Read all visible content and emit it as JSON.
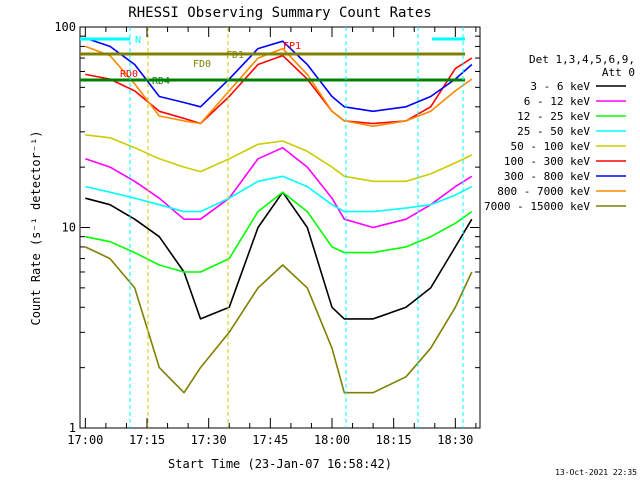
{
  "chart_data": {
    "type": "line",
    "title": "RHESSI Observing Summary Count Rates",
    "xlabel": "Start Time (23-Jan-07 16:58:42)",
    "ylabel": "Count Rate (s⁻¹ detector⁻¹)",
    "ylim": [
      1,
      100
    ],
    "xlim": [
      "16:58:42",
      "18:36:00"
    ],
    "y_scale": "log",
    "x_ticks": [
      "17:00",
      "17:15",
      "17:30",
      "17:45",
      "18:00",
      "18:15",
      "18:30"
    ],
    "y_ticks": [
      "1",
      "10",
      "100"
    ],
    "legend_title": "Det 1,3,4,5,6,9,",
    "legend_subtitle": "Att 0",
    "legend_position": "right",
    "timestamp": "13-Oct-2021 22:35",
    "flags": [
      {
        "label": "N",
        "color": "#00ffff"
      },
      {
        "label": "FD1",
        "color": "#808000"
      },
      {
        "label": "FD0",
        "color": "#808000"
      },
      {
        "label": "RD0",
        "color": "#ff0000"
      },
      {
        "label": "RD4",
        "color": "#008000"
      },
      {
        "label": "FP1",
        "color": "#ff0000"
      }
    ],
    "series": [
      {
        "name": "3 - 6 keV",
        "color": "#000000",
        "x": [
          "17:00",
          "17:06",
          "17:12",
          "17:18",
          "17:24",
          "17:28",
          "17:35",
          "17:42",
          "17:48",
          "17:54",
          "18:00",
          "18:03",
          "18:10",
          "18:18",
          "18:24",
          "18:30",
          "18:34"
        ],
        "values": [
          14,
          13,
          11,
          9,
          6,
          3.5,
          4,
          10,
          15,
          10,
          4,
          3.5,
          3.5,
          4,
          5,
          8,
          11
        ]
      },
      {
        "name": "6 - 12 keV",
        "color": "#ff00ff",
        "x": [
          "17:00",
          "17:06",
          "17:12",
          "17:18",
          "17:24",
          "17:28",
          "17:35",
          "17:42",
          "17:48",
          "17:54",
          "18:00",
          "18:03",
          "18:10",
          "18:18",
          "18:24",
          "18:30",
          "18:34"
        ],
        "values": [
          22,
          20,
          17,
          14,
          11,
          11,
          14,
          22,
          25,
          20,
          14,
          11,
          10,
          11,
          13,
          16,
          18
        ]
      },
      {
        "name": "12 - 25 keV",
        "color": "#00ff00",
        "x": [
          "17:00",
          "17:06",
          "17:12",
          "17:18",
          "17:24",
          "17:28",
          "17:35",
          "17:42",
          "17:48",
          "17:54",
          "18:00",
          "18:03",
          "18:10",
          "18:18",
          "18:24",
          "18:30",
          "18:34"
        ],
        "values": [
          9,
          8.5,
          7.5,
          6.5,
          6,
          6,
          7,
          12,
          15,
          12,
          8,
          7.5,
          7.5,
          8,
          9,
          10.5,
          12
        ]
      },
      {
        "name": "25 - 50 keV",
        "color": "#00ffff",
        "x": [
          "17:00",
          "17:06",
          "17:12",
          "17:18",
          "17:24",
          "17:28",
          "17:35",
          "17:42",
          "17:48",
          "17:54",
          "18:00",
          "18:03",
          "18:10",
          "18:18",
          "18:24",
          "18:30",
          "18:34"
        ],
        "values": [
          16,
          15,
          14,
          13,
          12,
          12,
          14,
          17,
          18,
          16,
          13,
          12,
          12,
          12.5,
          13,
          14.5,
          16
        ]
      },
      {
        "name": "50 - 100 keV",
        "color": "#cccc00",
        "x": [
          "17:00",
          "17:06",
          "17:12",
          "17:18",
          "17:24",
          "17:28",
          "17:35",
          "17:42",
          "17:48",
          "17:54",
          "18:00",
          "18:03",
          "18:10",
          "18:18",
          "18:24",
          "18:30",
          "18:34"
        ],
        "values": [
          29,
          28,
          25,
          22,
          20,
          19,
          22,
          26,
          27,
          24,
          20,
          18,
          17,
          17,
          18.5,
          21,
          23
        ]
      },
      {
        "name": "100 - 300 keV",
        "color": "#ff0000",
        "x": [
          "17:00",
          "17:06",
          "17:12",
          "17:18",
          "17:24",
          "17:28",
          "17:35",
          "17:42",
          "17:48",
          "17:54",
          "18:00",
          "18:03",
          "18:10",
          "18:18",
          "18:24",
          "18:30",
          "18:34"
        ],
        "values": [
          58,
          55,
          48,
          38,
          35,
          33,
          45,
          65,
          72,
          55,
          38,
          34,
          33,
          34,
          40,
          62,
          70
        ]
      },
      {
        "name": "300 - 800 keV",
        "color": "#0000ff",
        "x": [
          "17:00",
          "17:06",
          "17:12",
          "17:18",
          "17:24",
          "17:28",
          "17:35",
          "17:42",
          "17:48",
          "17:54",
          "18:00",
          "18:03",
          "18:10",
          "18:18",
          "18:24",
          "18:30",
          "18:34"
        ],
        "values": [
          88,
          80,
          65,
          45,
          42,
          40,
          55,
          78,
          85,
          65,
          45,
          40,
          38,
          40,
          45,
          55,
          65
        ]
      },
      {
        "name": "800 - 7000 keV",
        "color": "#ff8800",
        "x": [
          "17:00",
          "17:06",
          "17:12",
          "17:18",
          "17:24",
          "17:28",
          "17:35",
          "17:42",
          "17:48",
          "17:54",
          "18:00",
          "18:03",
          "18:10",
          "18:18",
          "18:24",
          "18:30",
          "18:34"
        ],
        "values": [
          80,
          72,
          52,
          36,
          34,
          33,
          48,
          70,
          78,
          58,
          38,
          34,
          32,
          34,
          38,
          48,
          55
        ]
      },
      {
        "name": "7000 - 15000 keV",
        "color": "#808000",
        "x": [
          "17:00",
          "17:06",
          "17:12",
          "17:18",
          "17:24",
          "17:28",
          "17:35",
          "17:42",
          "17:48",
          "17:54",
          "18:00",
          "18:03",
          "18:10",
          "18:18",
          "18:24",
          "18:30",
          "18:34"
        ],
        "values": [
          8,
          7,
          5,
          2,
          1.5,
          2,
          3,
          5,
          6.5,
          5,
          2.5,
          1.5,
          1.5,
          1.8,
          2.5,
          4,
          6
        ]
      }
    ]
  }
}
